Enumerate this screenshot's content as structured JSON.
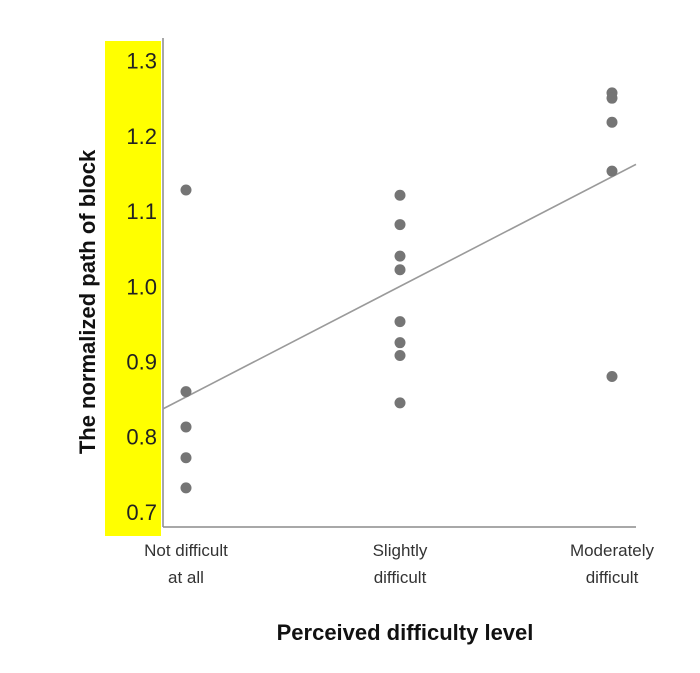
{
  "chart_data": {
    "type": "scatter",
    "title": "",
    "xlabel": "Perceived difficulty level",
    "ylabel": "The normalized path of block",
    "categories": [
      [
        "Not difficult",
        "at all"
      ],
      [
        "Slightly",
        "difficult"
      ],
      [
        "Moderately",
        "difficult"
      ]
    ],
    "ylim": [
      0.68,
      1.33
    ],
    "yticks": [
      "0.7",
      "0.8",
      "0.9",
      "1.0",
      "1.1",
      "1.2",
      "1.3"
    ],
    "series": [
      {
        "points": [
          {
            "x": 0,
            "y": 1.128
          },
          {
            "x": 0,
            "y": 0.86
          },
          {
            "x": 0,
            "y": 0.813
          },
          {
            "x": 0,
            "y": 0.772
          },
          {
            "x": 0,
            "y": 0.732
          },
          {
            "x": 1,
            "y": 1.121
          },
          {
            "x": 1,
            "y": 1.082
          },
          {
            "x": 1,
            "y": 1.04
          },
          {
            "x": 1,
            "y": 1.022
          },
          {
            "x": 1,
            "y": 0.953
          },
          {
            "x": 1,
            "y": 0.925
          },
          {
            "x": 1,
            "y": 0.908
          },
          {
            "x": 1,
            "y": 0.845
          },
          {
            "x": 2,
            "y": 1.257
          },
          {
            "x": 2,
            "y": 1.25
          },
          {
            "x": 2,
            "y": 1.218
          },
          {
            "x": 2,
            "y": 1.153
          },
          {
            "x": 2,
            "y": 0.88
          }
        ]
      }
    ],
    "trendline": {
      "type": "linear",
      "y_start": 0.837,
      "y_end": 1.162
    },
    "grid": false,
    "legend": "none",
    "colors": {
      "points": "#757575",
      "trendline": "#9a9a9a",
      "axis": "#8c8c8c",
      "y_axis_highlight": "#ffff00"
    }
  }
}
